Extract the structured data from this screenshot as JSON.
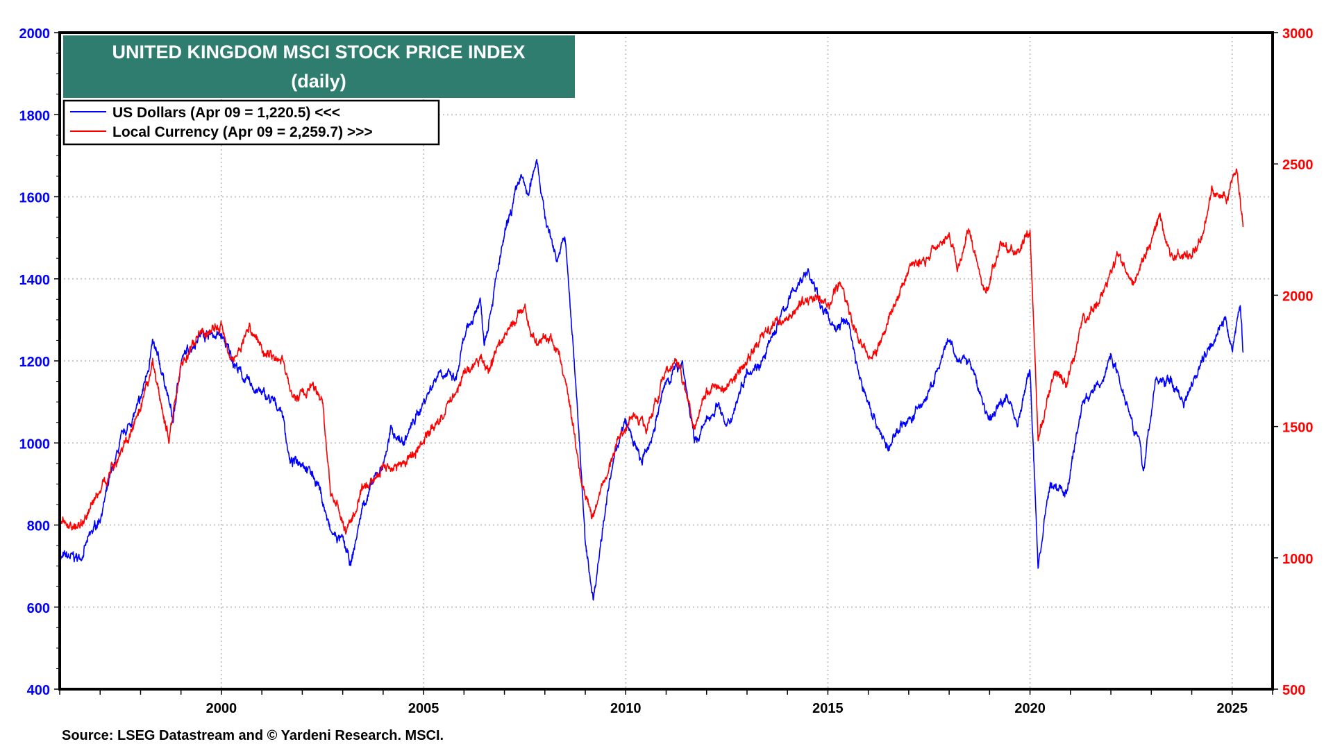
{
  "chart_data": {
    "type": "line",
    "title": "UNITED KINGDOM MSCI STOCK PRICE INDEX",
    "subtitle": "(daily)",
    "source": "Source: LSEG Datastream and © Yardeni Research. MSCI.",
    "xlim": [
      1996,
      2026
    ],
    "x_ticks": [
      "2000",
      "2005",
      "2010",
      "2015",
      "2020",
      "2025"
    ],
    "y_left": {
      "lim": [
        400,
        2000
      ],
      "ticks": [
        "400",
        "600",
        "800",
        "1000",
        "1200",
        "1400",
        "1600",
        "1800",
        "2000"
      ],
      "color": "#0000ff"
    },
    "y_right": {
      "lim": [
        500,
        3000
      ],
      "ticks": [
        "500",
        "1000",
        "1500",
        "2000",
        "2500",
        "3000"
      ],
      "color": "#ff0000"
    },
    "grid": true,
    "legend_position": "top-left",
    "series": [
      {
        "name": "US Dollars (Apr 09 = 1,220.5) <<<",
        "axis": "left",
        "color": "#0000ff",
        "points": [
          [
            1996.0,
            720
          ],
          [
            1996.5,
            720
          ],
          [
            1997.0,
            820
          ],
          [
            1997.5,
            1000
          ],
          [
            1998.0,
            1100
          ],
          [
            1998.3,
            1240
          ],
          [
            1998.6,
            1150
          ],
          [
            1998.8,
            1050
          ],
          [
            1999.0,
            1200
          ],
          [
            1999.5,
            1270
          ],
          [
            2000.0,
            1260
          ],
          [
            2000.3,
            1200
          ],
          [
            2000.6,
            1150
          ],
          [
            2001.0,
            1120
          ],
          [
            2001.5,
            1080
          ],
          [
            2001.7,
            950
          ],
          [
            2002.0,
            960
          ],
          [
            2002.4,
            900
          ],
          [
            2002.7,
            780
          ],
          [
            2003.0,
            760
          ],
          [
            2003.2,
            700
          ],
          [
            2003.5,
            850
          ],
          [
            2004.0,
            950
          ],
          [
            2004.2,
            1030
          ],
          [
            2004.5,
            1000
          ],
          [
            2005.0,
            1100
          ],
          [
            2005.4,
            1180
          ],
          [
            2005.8,
            1150
          ],
          [
            2006.0,
            1250
          ],
          [
            2006.4,
            1350
          ],
          [
            2006.5,
            1250
          ],
          [
            2007.0,
            1500
          ],
          [
            2007.4,
            1650
          ],
          [
            2007.6,
            1600
          ],
          [
            2007.8,
            1700
          ],
          [
            2008.0,
            1550
          ],
          [
            2008.3,
            1450
          ],
          [
            2008.5,
            1500
          ],
          [
            2008.8,
            1100
          ],
          [
            2009.0,
            750
          ],
          [
            2009.2,
            620
          ],
          [
            2009.5,
            850
          ],
          [
            2009.8,
            1000
          ],
          [
            2010.0,
            1050
          ],
          [
            2010.4,
            950
          ],
          [
            2010.6,
            1000
          ],
          [
            2011.0,
            1150
          ],
          [
            2011.4,
            1200
          ],
          [
            2011.7,
            1000
          ],
          [
            2012.0,
            1050
          ],
          [
            2012.3,
            1100
          ],
          [
            2012.5,
            1030
          ],
          [
            2013.0,
            1180
          ],
          [
            2013.4,
            1200
          ],
          [
            2013.8,
            1300
          ],
          [
            2014.2,
            1380
          ],
          [
            2014.5,
            1420
          ],
          [
            2014.9,
            1320
          ],
          [
            2015.2,
            1280
          ],
          [
            2015.5,
            1300
          ],
          [
            2015.8,
            1150
          ],
          [
            2016.2,
            1050
          ],
          [
            2016.5,
            980
          ],
          [
            2016.8,
            1050
          ],
          [
            2017.0,
            1050
          ],
          [
            2017.5,
            1120
          ],
          [
            2018.0,
            1250
          ],
          [
            2018.2,
            1200
          ],
          [
            2018.5,
            1200
          ],
          [
            2018.9,
            1080
          ],
          [
            2019.0,
            1050
          ],
          [
            2019.4,
            1120
          ],
          [
            2019.7,
            1050
          ],
          [
            2020.0,
            1180
          ],
          [
            2020.2,
            700
          ],
          [
            2020.5,
            900
          ],
          [
            2020.9,
            880
          ],
          [
            2021.3,
            1100
          ],
          [
            2021.8,
            1150
          ],
          [
            2022.0,
            1220
          ],
          [
            2022.4,
            1100
          ],
          [
            2022.7,
            1000
          ],
          [
            2022.8,
            930
          ],
          [
            2023.1,
            1150
          ],
          [
            2023.5,
            1150
          ],
          [
            2023.8,
            1100
          ],
          [
            2024.0,
            1150
          ],
          [
            2024.5,
            1250
          ],
          [
            2024.8,
            1300
          ],
          [
            2025.0,
            1230
          ],
          [
            2025.2,
            1340
          ],
          [
            2025.27,
            1220.5
          ]
        ]
      },
      {
        "name": "Local Currency (Apr 09 = 2,259.7) >>>",
        "axis": "right",
        "color": "#ff0000",
        "points": [
          [
            1996.0,
            1130
          ],
          [
            1996.5,
            1120
          ],
          [
            1997.0,
            1260
          ],
          [
            1997.5,
            1400
          ],
          [
            1998.0,
            1550
          ],
          [
            1998.3,
            1740
          ],
          [
            1998.7,
            1450
          ],
          [
            1999.0,
            1740
          ],
          [
            1999.5,
            1850
          ],
          [
            2000.0,
            1880
          ],
          [
            2000.3,
            1750
          ],
          [
            2000.7,
            1880
          ],
          [
            2001.0,
            1800
          ],
          [
            2001.5,
            1750
          ],
          [
            2001.8,
            1600
          ],
          [
            2002.2,
            1650
          ],
          [
            2002.5,
            1600
          ],
          [
            2002.7,
            1250
          ],
          [
            2003.1,
            1100
          ],
          [
            2003.5,
            1250
          ],
          [
            2004.0,
            1350
          ],
          [
            2004.5,
            1350
          ],
          [
            2005.0,
            1450
          ],
          [
            2005.5,
            1550
          ],
          [
            2006.0,
            1700
          ],
          [
            2006.4,
            1750
          ],
          [
            2006.6,
            1720
          ],
          [
            2007.0,
            1850
          ],
          [
            2007.5,
            1950
          ],
          [
            2007.8,
            1800
          ],
          [
            2008.0,
            1850
          ],
          [
            2008.3,
            1800
          ],
          [
            2008.6,
            1600
          ],
          [
            2008.9,
            1300
          ],
          [
            2009.2,
            1160
          ],
          [
            2009.5,
            1300
          ],
          [
            2009.8,
            1450
          ],
          [
            2010.2,
            1550
          ],
          [
            2010.5,
            1500
          ],
          [
            2011.0,
            1700
          ],
          [
            2011.3,
            1750
          ],
          [
            2011.7,
            1500
          ],
          [
            2012.0,
            1650
          ],
          [
            2012.5,
            1650
          ],
          [
            2013.0,
            1750
          ],
          [
            2013.4,
            1850
          ],
          [
            2013.8,
            1900
          ],
          [
            2014.2,
            1950
          ],
          [
            2014.7,
            2000
          ],
          [
            2015.0,
            1950
          ],
          [
            2015.3,
            2050
          ],
          [
            2015.7,
            1850
          ],
          [
            2016.1,
            1750
          ],
          [
            2016.5,
            1900
          ],
          [
            2017.0,
            2100
          ],
          [
            2017.5,
            2150
          ],
          [
            2018.0,
            2250
          ],
          [
            2018.2,
            2100
          ],
          [
            2018.5,
            2250
          ],
          [
            2018.9,
            2000
          ],
          [
            2019.3,
            2200
          ],
          [
            2019.7,
            2150
          ],
          [
            2020.0,
            2250
          ],
          [
            2020.2,
            1450
          ],
          [
            2020.6,
            1700
          ],
          [
            2020.9,
            1650
          ],
          [
            2021.3,
            1900
          ],
          [
            2021.8,
            2000
          ],
          [
            2022.2,
            2150
          ],
          [
            2022.6,
            2050
          ],
          [
            2023.0,
            2200
          ],
          [
            2023.2,
            2300
          ],
          [
            2023.5,
            2150
          ],
          [
            2023.9,
            2150
          ],
          [
            2024.3,
            2250
          ],
          [
            2024.5,
            2400
          ],
          [
            2024.9,
            2380
          ],
          [
            2025.1,
            2480
          ],
          [
            2025.27,
            2259.7
          ]
        ]
      }
    ]
  }
}
